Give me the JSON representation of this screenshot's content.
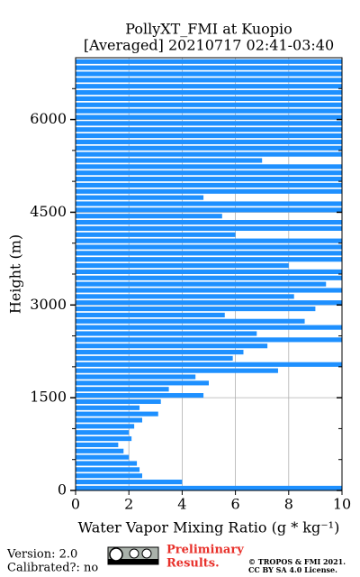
{
  "chart_data": {
    "type": "profile",
    "title": "PollyXT_FMI at Kuopio",
    "subtitle": "[Averaged] 20210717 02:41-03:40",
    "x_label": "Water Vapor Mixing Ratio (g * kg⁻¹)",
    "y_label": "Height (m)",
    "color": "#1e90ff",
    "y": [
      0,
      100,
      200,
      300,
      400,
      500,
      600,
      700,
      800,
      900,
      1000,
      1100,
      1200,
      1300,
      1400,
      1500,
      1600,
      1700,
      1800,
      1900,
      2000,
      2100,
      2200,
      2300,
      2400,
      2500,
      2600,
      2700,
      2800,
      2900,
      3000,
      3100,
      3200,
      3300,
      3400,
      3500,
      3600,
      3700,
      3800,
      3900,
      4000,
      4100,
      4200,
      4300,
      4400,
      4500,
      4600,
      4700,
      4800,
      4900,
      5000,
      5100,
      5200,
      5300,
      5400,
      5500,
      5600,
      5700,
      5800,
      5900,
      6000,
      6100,
      6200,
      6300,
      6400,
      6500,
      6600,
      6700,
      6800,
      6900
    ],
    "values": [
      10.5,
      4.0,
      2.5,
      2.4,
      2.3,
      2.0,
      1.8,
      1.6,
      2.1,
      2.0,
      2.2,
      2.5,
      3.1,
      2.4,
      3.2,
      4.8,
      3.5,
      5.0,
      4.5,
      7.6,
      10.5,
      5.9,
      6.3,
      7.2,
      10.5,
      6.8,
      10.5,
      8.6,
      5.6,
      9.0,
      10.5,
      8.2,
      10.5,
      9.4,
      10.5,
      10.5,
      8.0,
      10.5,
      10.5,
      10.5,
      10.5,
      6.0,
      10.5,
      10.5,
      5.5,
      10.5,
      10.5,
      4.8,
      10.5,
      10.5,
      10.5,
      10.5,
      10.5,
      7.0,
      10.5,
      10.5,
      10.5,
      10.5,
      10.5,
      10.5,
      10.5,
      10.5,
      10.5,
      10.5,
      10.5,
      10.5,
      10.5,
      10.5,
      10.5,
      10.5
    ],
    "xlim": [
      0,
      10
    ],
    "xticks": [
      0,
      2,
      4,
      6,
      8,
      10
    ],
    "ylim": [
      0,
      7000
    ],
    "yticks": [
      0,
      1500,
      3000,
      4500,
      6000
    ],
    "yticks_minor": [
      500,
      1000,
      2000,
      2500,
      3500,
      4000,
      5000,
      5500,
      6500
    ],
    "grid": true
  },
  "footer": {
    "version": "Version: 2.0",
    "calibrated": "Calibrated?: no",
    "preliminary": [
      "Preliminary",
      "Results."
    ],
    "copyright": "© TROPOS & FMI 2021.",
    "license": "CC BY SA 4.0 License."
  }
}
